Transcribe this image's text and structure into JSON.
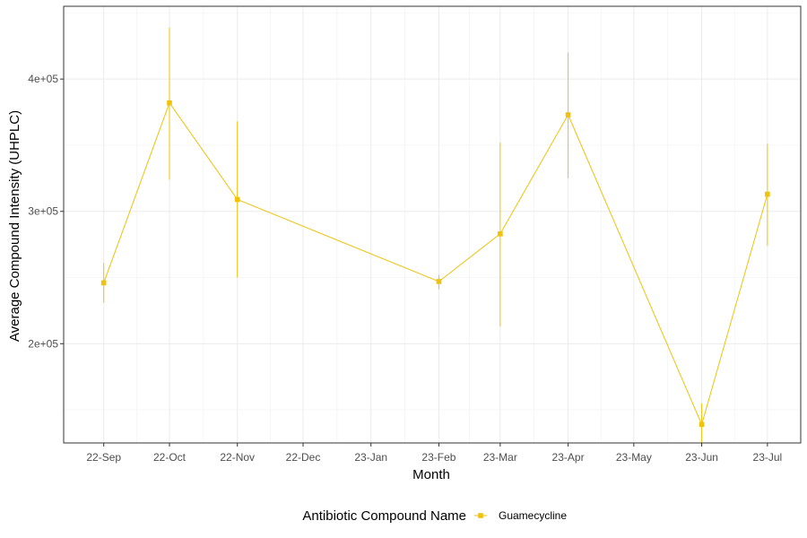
{
  "chart_data": {
    "type": "line",
    "xlabel": "Month",
    "ylabel": "Average Compound Intensity (UHPLC)",
    "categories": [
      "22-Sep",
      "22-Oct",
      "22-Nov",
      "22-Dec",
      "23-Jan",
      "23-Feb",
      "23-Mar",
      "23-Apr",
      "23-May",
      "23-Jun",
      "23-Jul"
    ],
    "x_dates": [
      "2022-09-01",
      "2022-10-01",
      "2022-11-01",
      "2022-12-01",
      "2023-01-01",
      "2023-02-01",
      "2023-03-01",
      "2023-04-01",
      "2023-05-01",
      "2023-06-01",
      "2023-07-01"
    ],
    "y_ticks": [
      200000,
      300000,
      400000
    ],
    "y_tick_labels": [
      "2e+05",
      "3e+05",
      "4e+05"
    ],
    "ylim": [
      125000,
      455000
    ],
    "grid": true,
    "legend": {
      "title": "Antibiotic Compound Name",
      "position": "bottom"
    },
    "series": [
      {
        "name": "Guamecycline",
        "color": "#F0C20A",
        "points": [
          {
            "x": "2022-09-01",
            "y": 246000,
            "ymin": 231000,
            "ymax": 261000
          },
          {
            "x": "2022-10-01",
            "y": 382000,
            "ymin": 324000,
            "ymax": 439000
          },
          {
            "x": "2022-11-01",
            "y": 309000,
            "ymin": 250000,
            "ymax": 368000
          },
          {
            "x": "2023-02-01",
            "y": 247000,
            "ymin": 241000,
            "ymax": 252000
          },
          {
            "x": "2023-03-01",
            "y": 283000,
            "ymin": 213000,
            "ymax": 352000
          },
          {
            "x": "2023-04-01",
            "y": 373000,
            "ymin": 325000,
            "ymax": 420000
          },
          {
            "x": "2023-06-01",
            "y": 139000,
            "ymin": 123000,
            "ymax": 155000
          },
          {
            "x": "2023-07-01",
            "y": 313000,
            "ymin": 274000,
            "ymax": 351000
          }
        ]
      }
    ]
  }
}
